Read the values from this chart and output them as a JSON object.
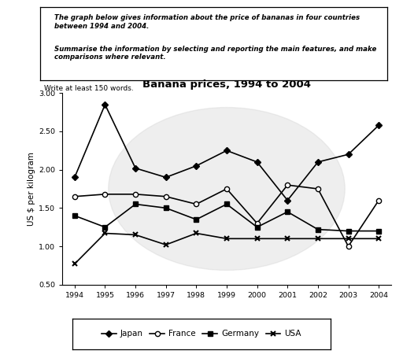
{
  "title": "Banana prices, 1994 to 2004",
  "ylabel": "US $ per kilogram",
  "years": [
    1994,
    1995,
    1996,
    1997,
    1998,
    1999,
    2000,
    2001,
    2002,
    2003,
    2004
  ],
  "japan": [
    1.9,
    2.85,
    2.02,
    1.9,
    2.05,
    2.25,
    2.1,
    1.6,
    2.1,
    2.2,
    2.58
  ],
  "france": [
    1.65,
    1.68,
    1.68,
    1.65,
    1.55,
    1.75,
    1.3,
    1.8,
    1.75,
    1.0,
    1.6
  ],
  "germany": [
    1.4,
    1.25,
    1.55,
    1.5,
    1.35,
    1.55,
    1.25,
    1.45,
    1.22,
    1.2,
    1.2
  ],
  "usa": [
    0.77,
    1.17,
    1.15,
    1.02,
    1.17,
    1.1,
    1.1,
    1.1,
    1.1,
    1.1,
    1.1
  ],
  "ylim": [
    0.5,
    3.0
  ],
  "yticks": [
    0.5,
    1.0,
    1.5,
    2.0,
    2.5,
    3.0
  ],
  "background_color": "#ffffff",
  "prompt_line1": "The graph below gives information about the price of bananas in four countries",
  "prompt_line2": "between 1994 and 2004.",
  "prompt_line3": "Summarise the information by selecting and reporting the main features, and make",
  "prompt_line4": "comparisons where relevant.",
  "write_note": "Write at least 150 words."
}
